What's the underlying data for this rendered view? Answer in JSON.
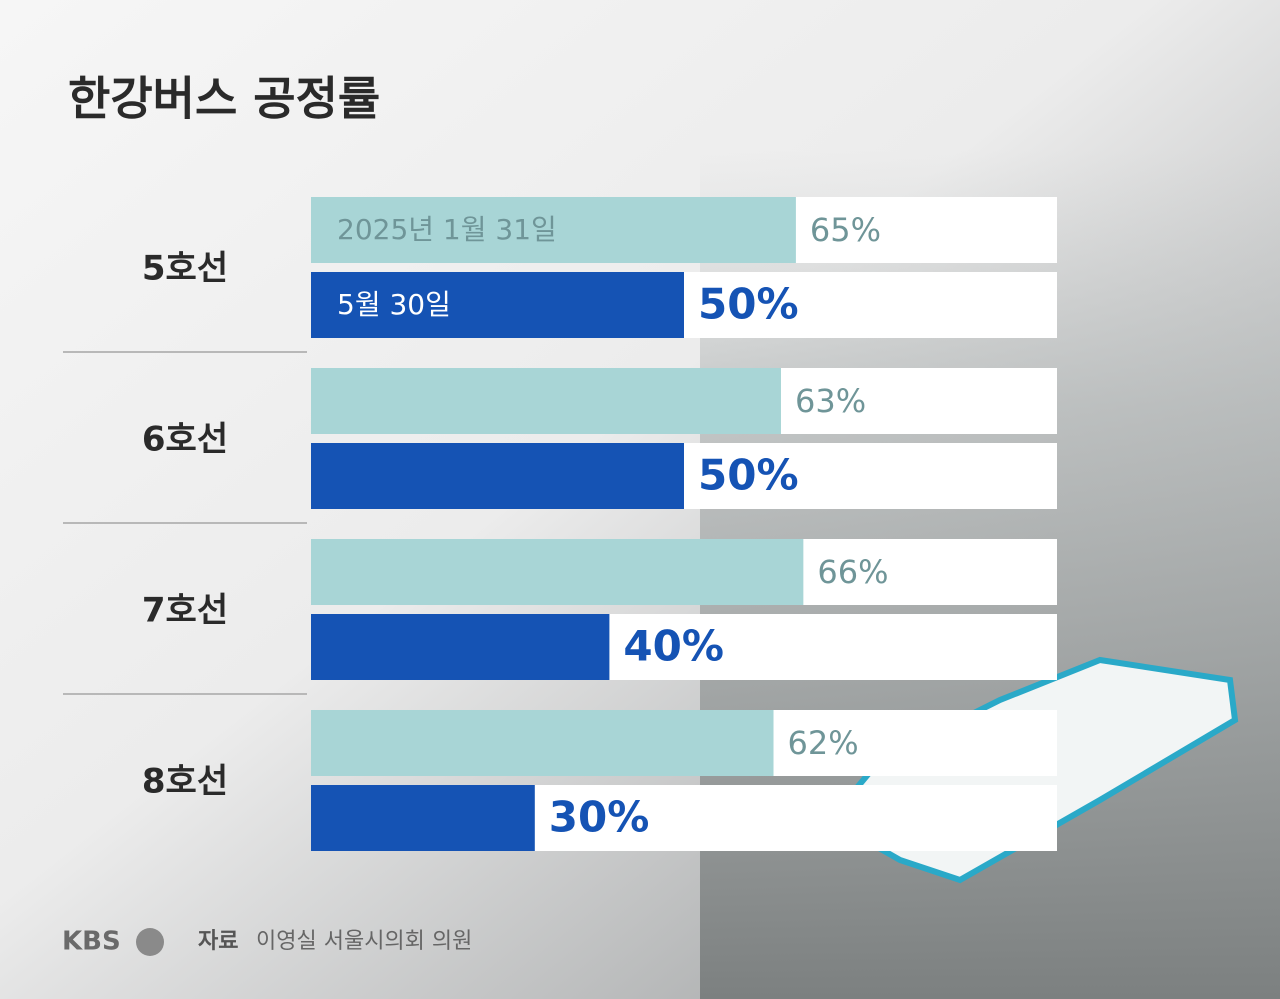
{
  "chart_data": {
    "type": "bar",
    "orientation": "horizontal",
    "title": "한강버스 공정률",
    "categories": [
      "5호선",
      "6호선",
      "7호선",
      "8호선"
    ],
    "series": [
      {
        "name": "2025년 1월 31일",
        "color": "#a8d5d6",
        "values": [
          65,
          63,
          66,
          62
        ],
        "value_labels": [
          "65%",
          "63%",
          "66%",
          "62%"
        ]
      },
      {
        "name": "5월 30일",
        "color": "#1553b4",
        "values": [
          50,
          50,
          40,
          30
        ],
        "value_labels": [
          "50%",
          "50%",
          "40%",
          "30%"
        ]
      }
    ],
    "xlim": [
      0,
      100
    ],
    "logo": "KBS",
    "source_label": "자료",
    "source": "이영실 서울시의회 의원"
  }
}
